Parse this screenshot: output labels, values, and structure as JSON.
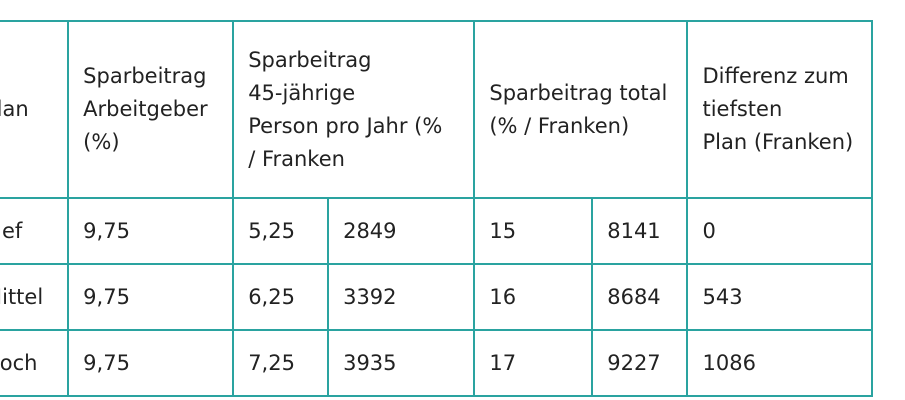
{
  "table": {
    "headers": {
      "plan": [
        "Plan"
      ],
      "arbeitgeber": [
        "Sparbeitrag",
        "Arbeitgeber",
        "(%)"
      ],
      "person": [
        "Sparbeitrag",
        "45-jährige",
        "Person pro Jahr (%",
        "/ Franken"
      ],
      "total": [
        "Sparbeitrag total",
        "(% / Franken)"
      ],
      "differenz": [
        "Differenz zum",
        "tiefsten",
        "Plan (Franken)"
      ]
    },
    "rows": [
      {
        "plan": "Tief",
        "arbeitgeber": "9,75",
        "person_pct": "5,25",
        "person_chf": "2849",
        "total_pct": "15",
        "total_chf": "8141",
        "differenz": "0"
      },
      {
        "plan": "Mittel",
        "arbeitgeber": "9,75",
        "person_pct": "6,25",
        "person_chf": "3392",
        "total_pct": "16",
        "total_chf": "8684",
        "differenz": "543"
      },
      {
        "plan": "Hoch",
        "arbeitgeber": "9,75",
        "person_pct": "7,25",
        "person_chf": "3935",
        "total_pct": "17",
        "total_chf": "9227",
        "differenz": "1086"
      }
    ]
  }
}
